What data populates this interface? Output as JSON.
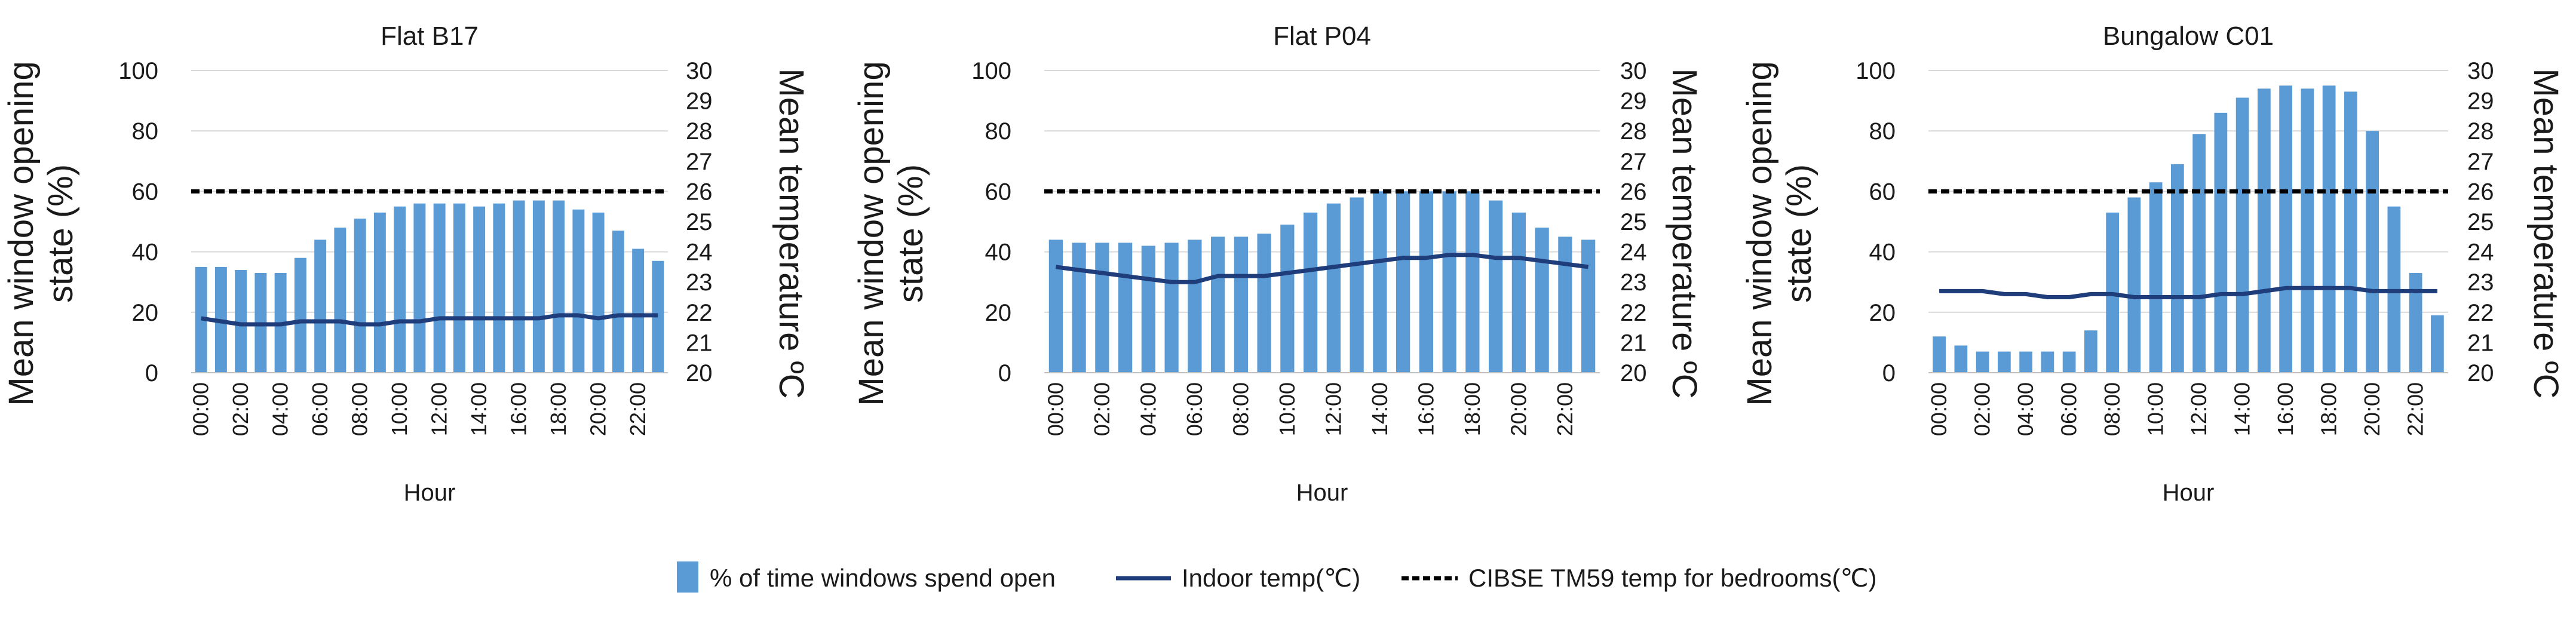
{
  "colors": {
    "bar": "#5b9bd5",
    "line": "#1f3d7a",
    "threshold": "#000000"
  },
  "legend": {
    "bars": "% of time windows spend open",
    "line": "Indoor temp(℃)",
    "threshold": "CIBSE TM59 temp for bedrooms(℃)"
  },
  "chart_data": [
    {
      "type": "bar",
      "title": "Flat B17",
      "xlabel": "Hour",
      "ylabel_left": "Mean window opening state (%)",
      "ylabel_right": "Mean temperature ºC",
      "ylim": [
        0,
        100
      ],
      "y2lim": [
        20,
        30
      ],
      "yticks": [
        0,
        20,
        40,
        60,
        80,
        100
      ],
      "y2ticks": [
        20,
        21,
        22,
        23,
        24,
        25,
        26,
        27,
        28,
        29,
        30
      ],
      "xticks": [
        "00:00",
        "02:00",
        "04:00",
        "06:00",
        "08:00",
        "10:00",
        "12:00",
        "14:00",
        "16:00",
        "18:00",
        "20:00",
        "22:00"
      ],
      "categories": [
        "00:00",
        "01:00",
        "02:00",
        "03:00",
        "04:00",
        "05:00",
        "06:00",
        "07:00",
        "08:00",
        "09:00",
        "10:00",
        "11:00",
        "12:00",
        "13:00",
        "14:00",
        "15:00",
        "16:00",
        "17:00",
        "18:00",
        "19:00",
        "20:00",
        "21:00",
        "22:00",
        "23:00"
      ],
      "series": [
        {
          "name": "% of time windows spend open",
          "axis": "left",
          "values": [
            35,
            35,
            34,
            33,
            33,
            38,
            44,
            48,
            51,
            53,
            55,
            56,
            56,
            56,
            55,
            56,
            57,
            57,
            57,
            54,
            53,
            47,
            41,
            37
          ]
        },
        {
          "name": "Indoor temp(℃)",
          "axis": "right",
          "values": [
            21.8,
            21.7,
            21.6,
            21.6,
            21.6,
            21.7,
            21.7,
            21.7,
            21.6,
            21.6,
            21.7,
            21.7,
            21.8,
            21.8,
            21.8,
            21.8,
            21.8,
            21.8,
            21.9,
            21.9,
            21.8,
            21.9,
            21.9,
            21.9
          ]
        },
        {
          "name": "CIBSE TM59 temp for bedrooms(℃)",
          "axis": "right",
          "values": [
            26,
            26,
            26,
            26,
            26,
            26,
            26,
            26,
            26,
            26,
            26,
            26,
            26,
            26,
            26,
            26,
            26,
            26,
            26,
            26,
            26,
            26,
            26,
            26
          ]
        }
      ]
    },
    {
      "type": "bar",
      "title": "Flat P04",
      "xlabel": "Hour",
      "ylabel_left": "Mean window opening state (%)",
      "ylabel_right": "Mean temperature ºC",
      "ylim": [
        0,
        100
      ],
      "y2lim": [
        20,
        30
      ],
      "yticks": [
        0,
        20,
        40,
        60,
        80,
        100
      ],
      "y2ticks": [
        20,
        21,
        22,
        23,
        24,
        25,
        26,
        27,
        28,
        29,
        30
      ],
      "xticks": [
        "00:00",
        "02:00",
        "04:00",
        "06:00",
        "08:00",
        "10:00",
        "12:00",
        "14:00",
        "16:00",
        "18:00",
        "20:00",
        "22:00"
      ],
      "categories": [
        "00:00",
        "01:00",
        "02:00",
        "03:00",
        "04:00",
        "05:00",
        "06:00",
        "07:00",
        "08:00",
        "09:00",
        "10:00",
        "11:00",
        "12:00",
        "13:00",
        "14:00",
        "15:00",
        "16:00",
        "17:00",
        "18:00",
        "19:00",
        "20:00",
        "21:00",
        "22:00",
        "23:00"
      ],
      "series": [
        {
          "name": "% of time windows spend open",
          "axis": "left",
          "values": [
            44,
            43,
            43,
            43,
            42,
            43,
            44,
            45,
            45,
            46,
            49,
            53,
            56,
            58,
            60,
            60,
            60,
            60,
            60,
            57,
            53,
            48,
            45,
            44
          ]
        },
        {
          "name": "Indoor temp(℃)",
          "axis": "right",
          "values": [
            23.5,
            23.4,
            23.3,
            23.2,
            23.1,
            23.0,
            23.0,
            23.2,
            23.2,
            23.2,
            23.3,
            23.4,
            23.5,
            23.6,
            23.7,
            23.8,
            23.8,
            23.9,
            23.9,
            23.8,
            23.8,
            23.7,
            23.6,
            23.5
          ]
        },
        {
          "name": "CIBSE TM59 temp for bedrooms(℃)",
          "axis": "right",
          "values": [
            26,
            26,
            26,
            26,
            26,
            26,
            26,
            26,
            26,
            26,
            26,
            26,
            26,
            26,
            26,
            26,
            26,
            26,
            26,
            26,
            26,
            26,
            26,
            26
          ]
        }
      ]
    },
    {
      "type": "bar",
      "title": "Bungalow C01",
      "xlabel": "Hour",
      "ylabel_left": "Mean window opening state (%)",
      "ylabel_right": "Mean temperature ºC",
      "ylim": [
        0,
        100
      ],
      "y2lim": [
        20,
        30
      ],
      "yticks": [
        0,
        20,
        40,
        60,
        80,
        100
      ],
      "y2ticks": [
        20,
        21,
        22,
        23,
        24,
        25,
        26,
        27,
        28,
        29,
        30
      ],
      "xticks": [
        "00:00",
        "02:00",
        "04:00",
        "06:00",
        "08:00",
        "10:00",
        "12:00",
        "14:00",
        "16:00",
        "18:00",
        "20:00",
        "22:00"
      ],
      "categories": [
        "00:00",
        "01:00",
        "02:00",
        "03:00",
        "04:00",
        "05:00",
        "06:00",
        "07:00",
        "08:00",
        "09:00",
        "10:00",
        "11:00",
        "12:00",
        "13:00",
        "14:00",
        "15:00",
        "16:00",
        "17:00",
        "18:00",
        "19:00",
        "20:00",
        "21:00",
        "22:00",
        "23:00"
      ],
      "series": [
        {
          "name": "% of time windows spend open",
          "axis": "left",
          "values": [
            12,
            9,
            7,
            7,
            7,
            7,
            7,
            14,
            53,
            58,
            63,
            69,
            79,
            86,
            91,
            94,
            95,
            94,
            95,
            93,
            80,
            55,
            33,
            19
          ]
        },
        {
          "name": "Indoor temp(℃)",
          "axis": "right",
          "values": [
            22.7,
            22.7,
            22.7,
            22.6,
            22.6,
            22.5,
            22.5,
            22.6,
            22.6,
            22.5,
            22.5,
            22.5,
            22.5,
            22.6,
            22.6,
            22.7,
            22.8,
            22.8,
            22.8,
            22.8,
            22.7,
            22.7,
            22.7,
            22.7
          ]
        },
        {
          "name": "CIBSE TM59 temp for bedrooms(℃)",
          "axis": "right",
          "values": [
            26,
            26,
            26,
            26,
            26,
            26,
            26,
            26,
            26,
            26,
            26,
            26,
            26,
            26,
            26,
            26,
            26,
            26,
            26,
            26,
            26,
            26,
            26,
            26
          ]
        }
      ]
    }
  ]
}
